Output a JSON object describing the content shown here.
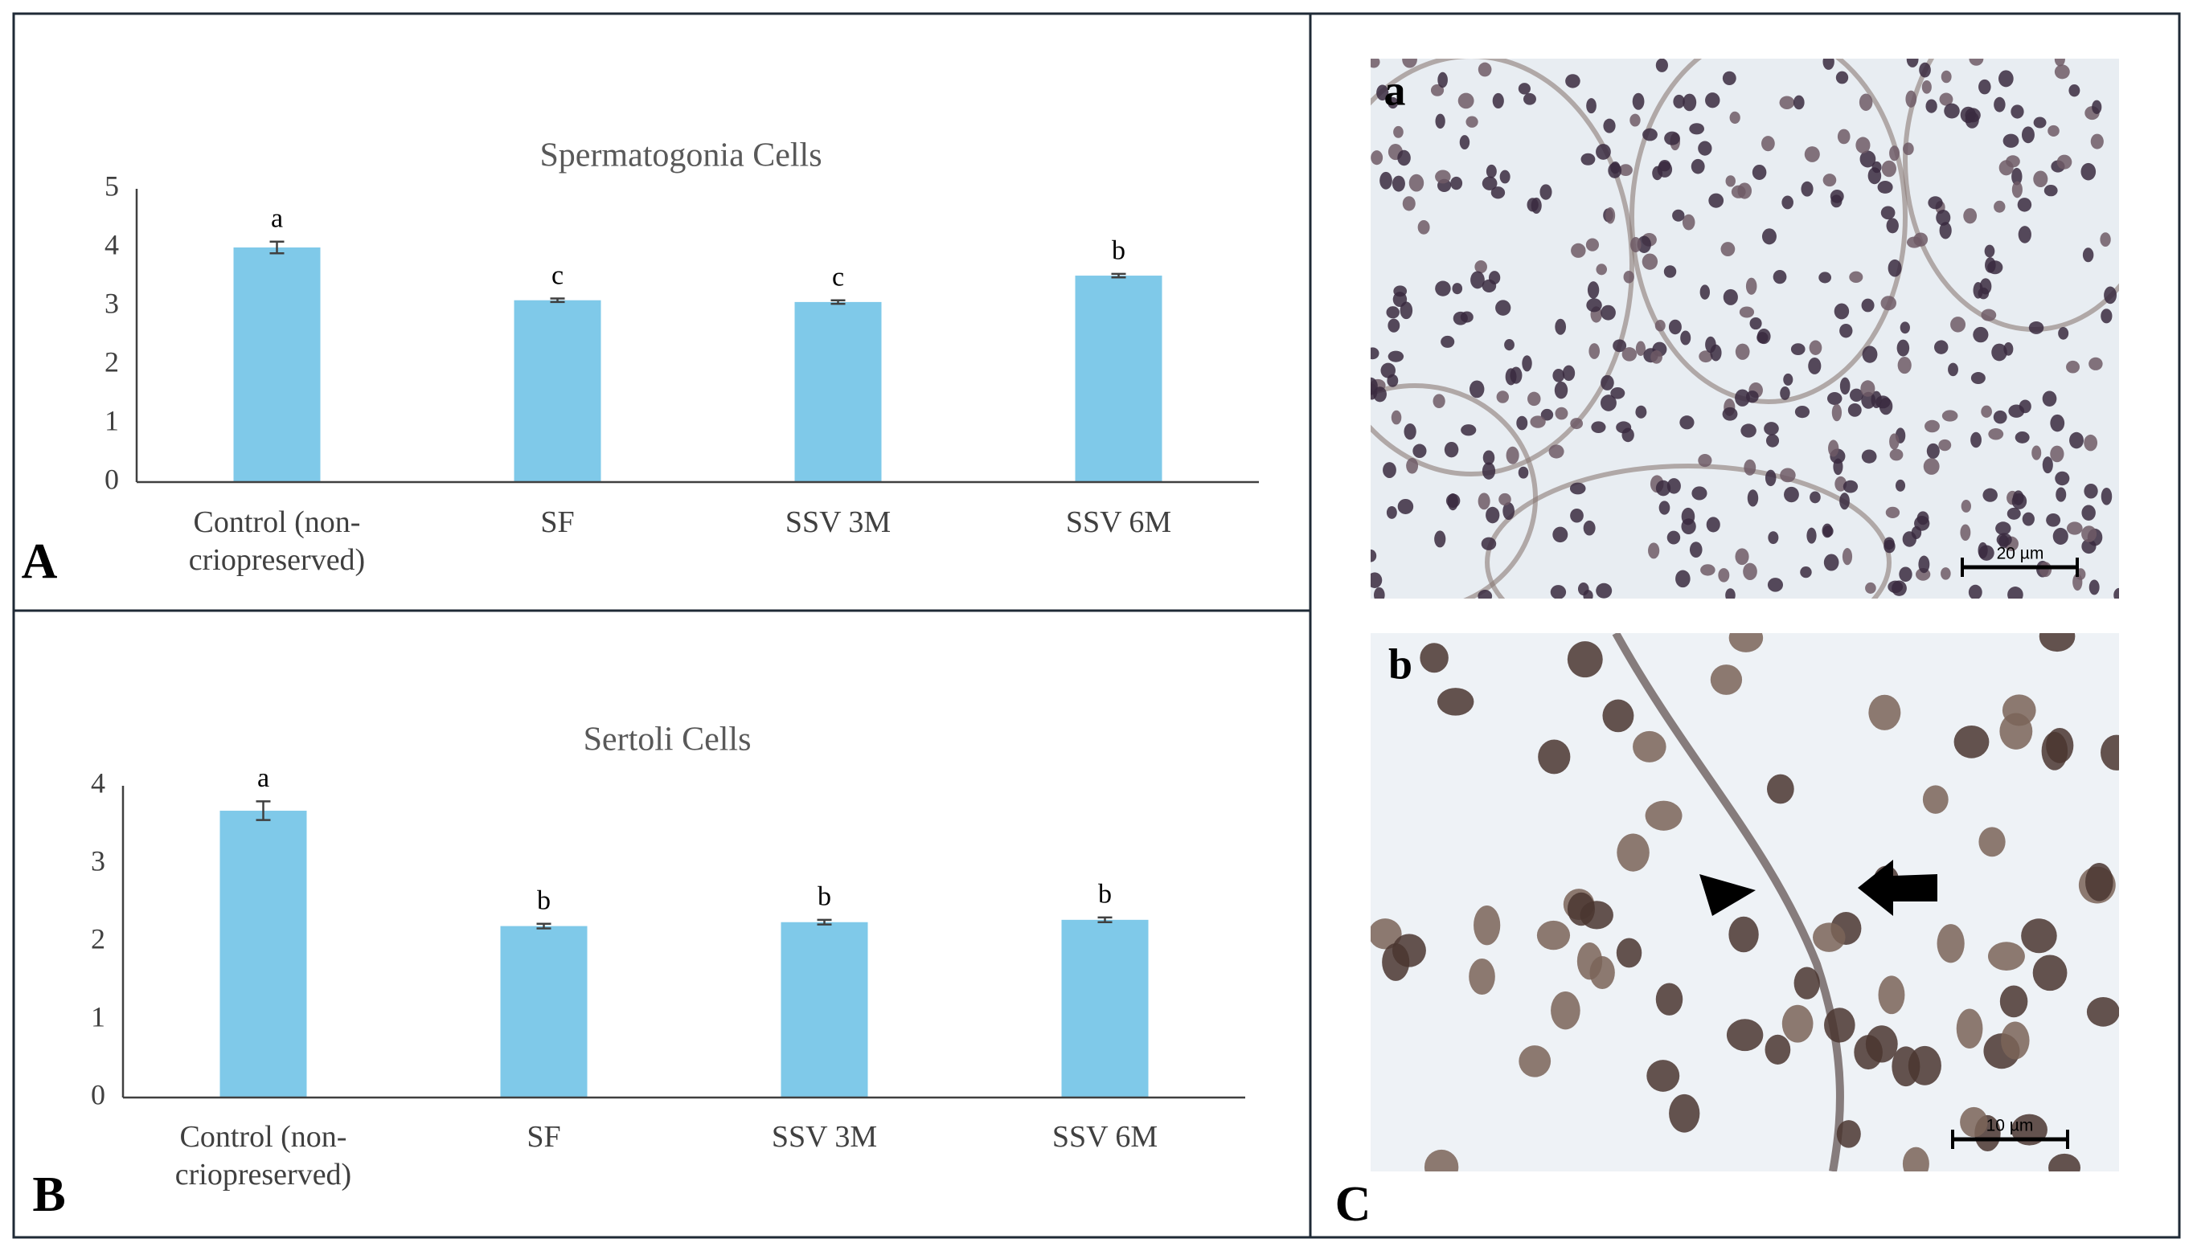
{
  "chart_data": [
    {
      "type": "bar",
      "panel_label": "A",
      "title": "Spermatogonia Cells",
      "categories": [
        "Control (non-criopreserved)",
        "SF",
        "SSV 3M",
        "SSV 6M"
      ],
      "values": [
        4.0,
        3.1,
        3.07,
        3.52
      ],
      "errors": [
        0.1,
        0.03,
        0.03,
        0.03
      ],
      "significance": [
        "a",
        "c",
        "c",
        "b"
      ],
      "color": "#7fc9e9",
      "ylim": [
        0,
        5
      ],
      "yticks": [
        0,
        1,
        2,
        3,
        4,
        5
      ],
      "grid": false
    },
    {
      "type": "bar",
      "panel_label": "B",
      "title": "Sertoli Cells",
      "categories": [
        "Control (non-criopreserved)",
        "SF",
        "SSV 3M",
        "SSV 6M"
      ],
      "values": [
        3.68,
        2.2,
        2.25,
        2.28
      ],
      "errors": [
        0.12,
        0.03,
        0.03,
        0.03
      ],
      "significance": [
        "a",
        "b",
        "b",
        "b"
      ],
      "color": "#7fc9e9",
      "ylim": [
        0,
        4
      ],
      "yticks": [
        0,
        1,
        2,
        3,
        4
      ],
      "grid": false
    }
  ],
  "micrographs": {
    "panel_label": "C",
    "images": [
      {
        "label": "a",
        "scale_bar": "20 µm"
      },
      {
        "label": "b",
        "scale_bar": "10 µm"
      }
    ]
  }
}
